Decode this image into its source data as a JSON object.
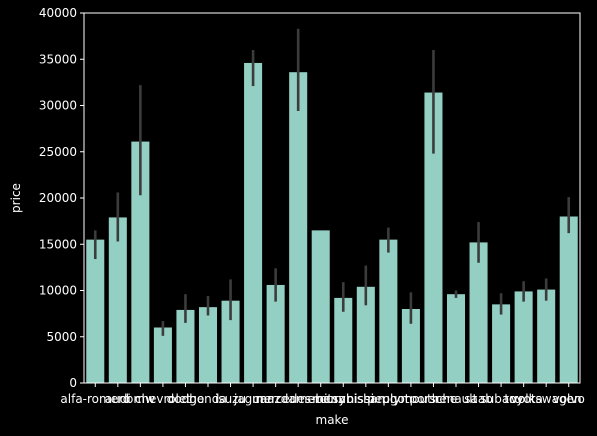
{
  "chart_data": {
    "type": "bar",
    "xlabel": "make",
    "ylabel": "price",
    "ylim": [
      0,
      40000
    ],
    "yticks": [
      0,
      5000,
      10000,
      15000,
      20000,
      25000,
      30000,
      35000,
      40000
    ],
    "categories": [
      "alfa-romero",
      "audi",
      "bmw",
      "chevrolet",
      "dodge",
      "honda",
      "isuzu",
      "jaguar",
      "mazda",
      "mercedes-benz",
      "mercury",
      "mitsubishi",
      "nissan",
      "peugot",
      "plymouth",
      "porsche",
      "renault",
      "saab",
      "subaru",
      "toyota",
      "volkswagen",
      "volvo"
    ],
    "values": [
      15500,
      17900,
      26100,
      6000,
      7900,
      8200,
      8900,
      34600,
      10600,
      33600,
      16500,
      9200,
      10400,
      15500,
      8000,
      31400,
      9600,
      15200,
      8500,
      9900,
      10100,
      18000
    ],
    "error_low": [
      13400,
      15300,
      20300,
      5100,
      6500,
      7300,
      6800,
      32100,
      8800,
      29400,
      16500,
      7700,
      8400,
      14100,
      6400,
      24800,
      9200,
      13000,
      7400,
      8800,
      8900,
      16200
    ],
    "error_high": [
      16500,
      20600,
      32200,
      6700,
      9600,
      9400,
      11200,
      36000,
      12400,
      38300,
      16500,
      10900,
      12700,
      16800,
      9800,
      36000,
      10000,
      17400,
      9700,
      11000,
      11300,
      20100
    ],
    "grid": false,
    "legend": "none"
  },
  "colors": {
    "background": "#000000",
    "bar": "#93cfc2",
    "errorbar": "#3c3c3c",
    "axis": "#ffffff",
    "text": "#ffffff"
  }
}
